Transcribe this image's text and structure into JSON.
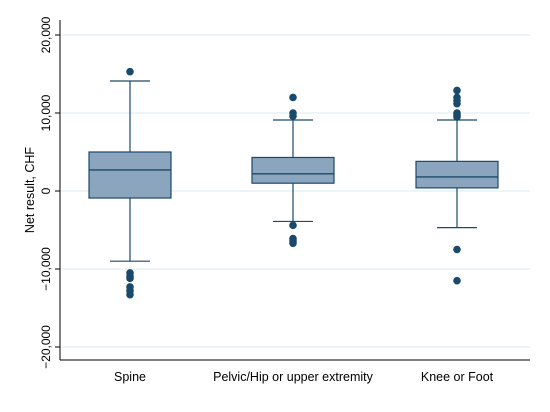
{
  "chart_data": {
    "type": "box",
    "title": "",
    "xlabel": "",
    "ylabel": "Net result, CHF",
    "ylim": [
      -20000,
      20000
    ],
    "yticks": [
      -20000,
      -10000,
      0,
      10000,
      20000
    ],
    "ytick_labels": [
      "−20,000",
      "−10,000",
      "0",
      "10,000",
      "20,000"
    ],
    "grid": true,
    "categories": [
      "Spine",
      "Pelvic/Hip or upper extremity",
      "Knee or Foot"
    ],
    "boxes": [
      {
        "category": "Spine",
        "whisker_low": -9000,
        "q1": -900,
        "median": 2700,
        "q3": 5000,
        "whisker_high": 14100,
        "outliers": [
          15300,
          -10500,
          -10900,
          -11200,
          -12300,
          -12800,
          -13300
        ]
      },
      {
        "category": "Pelvic/Hip or upper extremity",
        "whisker_low": -3900,
        "q1": 1000,
        "median": 2200,
        "q3": 4300,
        "whisker_high": 9100,
        "outliers": [
          12000,
          10000,
          9600,
          -4400,
          -6100,
          -6400,
          -6700
        ]
      },
      {
        "category": "Knee or Foot",
        "whisker_low": -4700,
        "q1": 400,
        "median": 1800,
        "q3": 3800,
        "whisker_high": 9100,
        "outliers": [
          12900,
          12000,
          11600,
          11200,
          10000,
          9700,
          9500,
          -7500,
          -11500
        ]
      }
    ],
    "colors": {
      "box_fill": "#8aa5bd",
      "box_stroke": "#1a4a6b",
      "point": "#1a4a6b",
      "grid": "#d8eef0",
      "axis": "#000000"
    }
  }
}
